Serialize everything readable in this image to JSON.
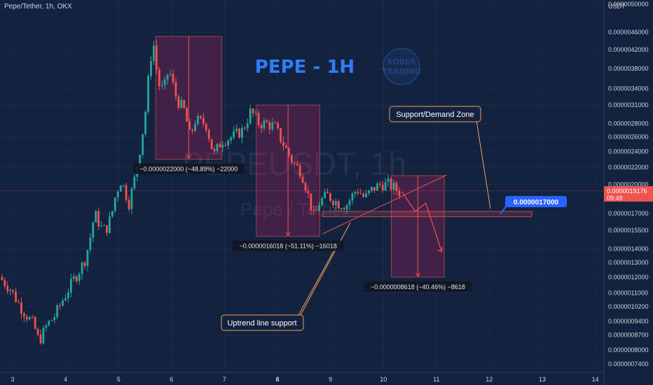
{
  "header": {
    "symbol_line": "Pepe/Tether, 1h, OKX"
  },
  "watermark": {
    "symbol": "PEPEUSDT, 1h",
    "name": "Pepe / Tether"
  },
  "logo_text": [
    "SOBER",
    "TRADING"
  ],
  "colors": {
    "background": "#13223f",
    "up": "#26a69a",
    "down": "#ef5350",
    "title": "#2f7df6",
    "measure_box": "rgba(233,30,99,0.22)",
    "callout_border": "#f0a050",
    "price_tag": "#2962ff",
    "current_price_tag": "#ef5350"
  },
  "chart_data": {
    "type": "candlestick",
    "title": "PEPE - 1H",
    "ylabel": "USDT",
    "y_axis_ticks": [
      "0.0000050000",
      "0.0000046000",
      "0.0000042000",
      "0.0000038000",
      "0.0000034000",
      "0.0000031000",
      "0.0000028000",
      "0.0000026000",
      "0.0000024000",
      "0.0000022000",
      "0.0000020000",
      "0.0000017000",
      "0.0000015500",
      "0.0000014000",
      "0.0000013000",
      "0.0000012000",
      "0.0000011000",
      "0.0000010200",
      "0.0000009400",
      "0.0000008700",
      "0.0000008000",
      "0.0000007400"
    ],
    "x_axis_ticks": [
      "3",
      "4",
      "5",
      "6",
      "7",
      "8",
      "9",
      "10",
      "11",
      "12",
      "13",
      "14"
    ],
    "x_range": [
      2.8,
      14.2
    ],
    "y_log": true,
    "current_price": {
      "value": "0.0000019176",
      "countdown": "09:49"
    },
    "price_path": [
      [
        2.8,
        1.2e-06
      ],
      [
        3.0,
        1.13e-06
      ],
      [
        3.2,
        1.02e-06
      ],
      [
        3.45,
        9.2e-07
      ],
      [
        3.55,
        8.4e-07
      ],
      [
        3.7,
        9.2e-07
      ],
      [
        3.85,
        9.7e-07
      ],
      [
        4.0,
        1.06e-06
      ],
      [
        4.2,
        1.18e-06
      ],
      [
        4.4,
        1.3e-06
      ],
      [
        4.5,
        1.45e-06
      ],
      [
        4.6,
        1.7e-06
      ],
      [
        4.75,
        1.55e-06
      ],
      [
        4.85,
        1.58e-06
      ],
      [
        4.95,
        1.75e-06
      ],
      [
        5.0,
        1.9e-06
      ],
      [
        5.1,
        2.05e-06
      ],
      [
        5.25,
        1.8e-06
      ],
      [
        5.35,
        2.05e-06
      ],
      [
        5.45,
        2.4e-06
      ],
      [
        5.55,
        2.9e-06
      ],
      [
        5.65,
        4e-06
      ],
      [
        5.72,
        4.3e-06
      ],
      [
        5.8,
        3.5e-06
      ],
      [
        5.9,
        3.35e-06
      ],
      [
        6.0,
        3.8e-06
      ],
      [
        6.15,
        3.2e-06
      ],
      [
        6.3,
        3e-06
      ],
      [
        6.4,
        2.6e-06
      ],
      [
        6.5,
        2.85e-06
      ],
      [
        6.7,
        2.8e-06
      ],
      [
        6.85,
        2.35e-06
      ],
      [
        7.0,
        2.55e-06
      ],
      [
        7.2,
        2.6e-06
      ],
      [
        7.4,
        2.7e-06
      ],
      [
        7.55,
        3e-06
      ],
      [
        7.7,
        2.8e-06
      ],
      [
        7.85,
        2.8e-06
      ],
      [
        8.0,
        2.75e-06
      ],
      [
        8.2,
        2.45e-06
      ],
      [
        8.35,
        2.25e-06
      ],
      [
        8.5,
        2.15e-06
      ],
      [
        8.6,
        1.95e-06
      ],
      [
        8.75,
        1.65e-06
      ],
      [
        8.85,
        1.82e-06
      ],
      [
        9.0,
        1.88e-06
      ],
      [
        9.2,
        1.8e-06
      ],
      [
        9.35,
        1.78e-06
      ],
      [
        9.55,
        1.95e-06
      ],
      [
        9.7,
        1.85e-06
      ],
      [
        9.85,
        1.95e-06
      ],
      [
        10.0,
        2e-06
      ],
      [
        10.15,
        2e-06
      ],
      [
        10.35,
        1.92e-06
      ]
    ],
    "measurements": [
      {
        "text": "−0.0000022000 (−48.89%) −22000",
        "x0": 5.7,
        "x1": 6.95,
        "y_top": 4.5e-06,
        "y_bottom": 2.3e-06
      },
      {
        "text": "−0.0000016018 (−51.11%) −16018",
        "x0": 7.6,
        "x1": 8.8,
        "y_top": 3.1e-06,
        "y_bottom": 1.5e-06
      },
      {
        "text": "−0.0000008618 (−40.46%) −8618",
        "x0": 10.15,
        "x1": 11.15,
        "y_top": 2.1e-06,
        "y_bottom": 1.2e-06
      }
    ],
    "annotations": {
      "support_zone_label": "Support/Demand Zone",
      "support_zone_price": "0.0000017000",
      "uptrend_label": "Uptrend line support"
    }
  }
}
